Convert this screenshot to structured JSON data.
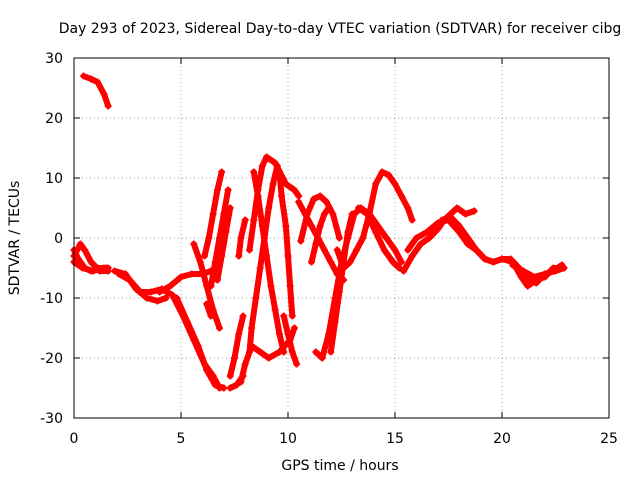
{
  "chart_data": {
    "type": "scatter",
    "title": "Day 293 of 2023, Sidereal Day-to-day VTEC variation (SDTVAR) for receiver cibg",
    "xlabel": "GPS time / hours",
    "ylabel": "SDTVAR / TECUs",
    "xlim": [
      0,
      25
    ],
    "ylim": [
      -30,
      30
    ],
    "xticks": [
      0,
      5,
      10,
      15,
      20,
      25
    ],
    "yticks": [
      -30,
      -20,
      -10,
      0,
      10,
      20,
      30
    ],
    "grid": true,
    "marker": "+",
    "color": "#ff0000",
    "series": [
      {
        "name": "s1",
        "points": [
          [
            0.45,
            27
          ],
          [
            0.8,
            26.5
          ],
          [
            1.1,
            26
          ],
          [
            1.4,
            24
          ],
          [
            1.6,
            22
          ]
        ]
      },
      {
        "name": "s2",
        "points": [
          [
            0.0,
            -2
          ],
          [
            0.2,
            -3.5
          ],
          [
            0.5,
            -5
          ],
          [
            0.8,
            -5.5
          ],
          [
            1.1,
            -5
          ],
          [
            1.5,
            -5
          ]
        ]
      },
      {
        "name": "s3",
        "points": [
          [
            0.0,
            -3
          ],
          [
            0.3,
            -1
          ],
          [
            0.5,
            -2
          ],
          [
            0.8,
            -4
          ],
          [
            1.2,
            -5.5
          ],
          [
            1.6,
            -5.5
          ]
        ]
      },
      {
        "name": "s4",
        "points": [
          [
            0.0,
            -4
          ],
          [
            0.4,
            -5
          ],
          [
            0.9,
            -5.5
          ],
          [
            1.4,
            -5
          ],
          [
            1.6,
            -5
          ]
        ]
      },
      {
        "name": "s5",
        "points": [
          [
            1.9,
            -5.5
          ],
          [
            2.4,
            -6
          ],
          [
            2.9,
            -8.5
          ],
          [
            3.4,
            -10
          ],
          [
            3.9,
            -10.5
          ],
          [
            4.3,
            -10
          ]
        ]
      },
      {
        "name": "s6",
        "points": [
          [
            2.1,
            -6
          ],
          [
            2.6,
            -7
          ],
          [
            3.1,
            -9
          ],
          [
            3.6,
            -9
          ],
          [
            4.1,
            -8.5
          ],
          [
            4.6,
            -9.5
          ],
          [
            5.1,
            -13
          ],
          [
            5.6,
            -17
          ],
          [
            6.1,
            -21
          ],
          [
            6.5,
            -23
          ],
          [
            6.8,
            -25
          ]
        ]
      },
      {
        "name": "s7",
        "points": [
          [
            4.0,
            -9
          ],
          [
            4.5,
            -8
          ],
          [
            5.0,
            -6.5
          ],
          [
            5.5,
            -6
          ],
          [
            6.0,
            -6
          ],
          [
            6.4,
            -5.5
          ]
        ]
      },
      {
        "name": "s8",
        "points": [
          [
            4.8,
            -10
          ],
          [
            5.3,
            -14
          ],
          [
            5.8,
            -18
          ],
          [
            6.2,
            -22
          ],
          [
            6.6,
            -24.5
          ],
          [
            7.0,
            -25
          ]
        ]
      },
      {
        "name": "s9",
        "points": [
          [
            5.6,
            -1
          ],
          [
            5.9,
            -4
          ],
          [
            6.2,
            -8
          ],
          [
            6.5,
            -12
          ],
          [
            6.8,
            -15
          ]
        ]
      },
      {
        "name": "s10",
        "points": [
          [
            6.1,
            -3
          ],
          [
            6.3,
            0
          ],
          [
            6.5,
            4
          ],
          [
            6.7,
            8
          ],
          [
            6.9,
            11
          ]
        ]
      },
      {
        "name": "s11",
        "points": [
          [
            6.4,
            -8
          ],
          [
            6.6,
            -4
          ],
          [
            6.8,
            0
          ],
          [
            7.0,
            4
          ],
          [
            7.2,
            8
          ]
        ]
      },
      {
        "name": "s12",
        "points": [
          [
            6.7,
            -7
          ],
          [
            6.9,
            -3
          ],
          [
            7.1,
            1
          ],
          [
            7.3,
            5
          ]
        ]
      },
      {
        "name": "s13",
        "points": [
          [
            6.2,
            -11
          ],
          [
            6.4,
            -13
          ]
        ]
      },
      {
        "name": "s14",
        "points": [
          [
            7.3,
            -25
          ],
          [
            7.6,
            -24.5
          ],
          [
            7.9,
            -23
          ]
        ]
      },
      {
        "name": "s15",
        "points": [
          [
            7.3,
            -23
          ],
          [
            7.5,
            -20
          ],
          [
            7.7,
            -16
          ],
          [
            7.9,
            -13
          ]
        ]
      },
      {
        "name": "s16",
        "points": [
          [
            7.8,
            -24
          ],
          [
            8.0,
            -21
          ],
          [
            8.3,
            -18
          ],
          [
            8.7,
            -19
          ],
          [
            9.1,
            -20
          ],
          [
            9.6,
            -19
          ],
          [
            10.1,
            -17
          ],
          [
            10.3,
            -15
          ]
        ]
      },
      {
        "name": "s17",
        "points": [
          [
            7.7,
            -3
          ],
          [
            7.8,
            0
          ],
          [
            8.0,
            3
          ]
        ]
      },
      {
        "name": "s18",
        "points": [
          [
            8.2,
            -19
          ],
          [
            8.3,
            -15
          ],
          [
            8.5,
            -10
          ],
          [
            8.7,
            -5
          ],
          [
            8.9,
            0
          ],
          [
            9.1,
            5
          ],
          [
            9.3,
            9
          ],
          [
            9.5,
            12
          ]
        ]
      },
      {
        "name": "s19",
        "points": [
          [
            8.2,
            -2
          ],
          [
            8.4,
            3
          ],
          [
            8.6,
            8
          ],
          [
            8.8,
            12
          ],
          [
            9.0,
            13.5
          ],
          [
            9.4,
            12.5
          ],
          [
            9.9,
            9
          ],
          [
            10.3,
            8
          ],
          [
            10.5,
            7
          ]
        ]
      },
      {
        "name": "s20",
        "points": [
          [
            8.4,
            11
          ],
          [
            8.6,
            7
          ],
          [
            8.8,
            2
          ],
          [
            9.0,
            -3
          ],
          [
            9.2,
            -8
          ],
          [
            9.4,
            -12
          ],
          [
            9.6,
            -16
          ],
          [
            9.8,
            -19
          ]
        ]
      },
      {
        "name": "s21",
        "points": [
          [
            9.6,
            11
          ],
          [
            9.7,
            7
          ],
          [
            9.9,
            2
          ],
          [
            10.0,
            -3
          ],
          [
            10.1,
            -8
          ],
          [
            10.2,
            -13
          ]
        ]
      },
      {
        "name": "s22",
        "points": [
          [
            9.8,
            -13
          ],
          [
            10.0,
            -16
          ],
          [
            10.2,
            -19
          ],
          [
            10.4,
            -21
          ]
        ]
      },
      {
        "name": "s23",
        "points": [
          [
            10.5,
            6
          ],
          [
            10.8,
            4
          ],
          [
            11.1,
            2
          ],
          [
            11.4,
            0
          ],
          [
            11.7,
            -2
          ],
          [
            12.0,
            -4
          ],
          [
            12.3,
            -6
          ],
          [
            12.6,
            -7
          ]
        ]
      },
      {
        "name": "s24",
        "points": [
          [
            10.6,
            -0.5
          ],
          [
            10.9,
            4
          ],
          [
            11.2,
            6.5
          ],
          [
            11.5,
            7
          ],
          [
            11.8,
            6
          ],
          [
            12.1,
            4
          ],
          [
            12.4,
            0
          ]
        ]
      },
      {
        "name": "s25",
        "points": [
          [
            11.1,
            -4
          ],
          [
            11.3,
            -1
          ],
          [
            11.5,
            2
          ],
          [
            11.7,
            4
          ],
          [
            11.9,
            5
          ]
        ]
      },
      {
        "name": "s26",
        "points": [
          [
            11.3,
            -19
          ],
          [
            11.6,
            -20
          ],
          [
            11.9,
            -16
          ],
          [
            12.2,
            -10
          ],
          [
            12.5,
            -4
          ],
          [
            12.8,
            0
          ],
          [
            13.1,
            4
          ],
          [
            13.4,
            5
          ],
          [
            13.8,
            4
          ],
          [
            14.2,
            2
          ],
          [
            14.6,
            0
          ],
          [
            15.0,
            -2
          ],
          [
            15.3,
            -4
          ]
        ]
      },
      {
        "name": "s27",
        "points": [
          [
            12.0,
            -19
          ],
          [
            12.2,
            -14
          ],
          [
            12.4,
            -9
          ],
          [
            12.6,
            -4
          ],
          [
            12.8,
            1
          ],
          [
            13.0,
            4
          ]
        ]
      },
      {
        "name": "s28",
        "points": [
          [
            12.3,
            -2
          ],
          [
            12.6,
            -5
          ],
          [
            12.9,
            -4
          ],
          [
            13.2,
            -2
          ],
          [
            13.5,
            0
          ],
          [
            13.8,
            4
          ],
          [
            14.1,
            9
          ],
          [
            14.4,
            11
          ],
          [
            14.7,
            10.5
          ],
          [
            15.0,
            9
          ],
          [
            15.3,
            7
          ],
          [
            15.6,
            5
          ],
          [
            15.8,
            3
          ]
        ]
      },
      {
        "name": "s29",
        "points": [
          [
            13.3,
            5
          ],
          [
            13.7,
            4
          ],
          [
            14.1,
            1
          ],
          [
            14.5,
            -2
          ],
          [
            14.9,
            -4
          ],
          [
            15.2,
            -5
          ]
        ]
      },
      {
        "name": "s30",
        "points": [
          [
            15.4,
            -5.5
          ],
          [
            15.8,
            -3
          ],
          [
            16.2,
            -1
          ],
          [
            16.6,
            0
          ],
          [
            17.0,
            1.5
          ],
          [
            17.3,
            3
          ],
          [
            17.6,
            4
          ],
          [
            17.9,
            5
          ],
          [
            18.3,
            4
          ],
          [
            18.7,
            4.5
          ]
        ]
      },
      {
        "name": "s31",
        "points": [
          [
            15.6,
            -2
          ],
          [
            16.0,
            0
          ],
          [
            16.5,
            1
          ],
          [
            17.0,
            2.5
          ],
          [
            17.5,
            3
          ],
          [
            18.0,
            1
          ],
          [
            18.4,
            -1
          ],
          [
            18.8,
            -2
          ],
          [
            19.2,
            -3.5
          ],
          [
            19.6,
            -4
          ],
          [
            20.0,
            -3.5
          ],
          [
            20.4,
            -3.5
          ],
          [
            20.8,
            -5
          ],
          [
            21.2,
            -7
          ],
          [
            21.6,
            -7.5
          ],
          [
            22.0,
            -6
          ],
          [
            22.4,
            -5.5
          ],
          [
            22.8,
            -4.5
          ]
        ]
      },
      {
        "name": "s32",
        "points": [
          [
            16.8,
            1
          ],
          [
            17.2,
            3
          ],
          [
            17.6,
            3.5
          ],
          [
            18.0,
            2
          ],
          [
            18.4,
            0
          ],
          [
            18.8,
            -2
          ],
          [
            19.2,
            -3.5
          ],
          [
            19.6,
            -4
          ],
          [
            20.0,
            -3.5
          ],
          [
            20.5,
            -4
          ],
          [
            20.9,
            -6.5
          ],
          [
            21.2,
            -8
          ],
          [
            21.6,
            -7
          ],
          [
            22.0,
            -6.5
          ],
          [
            22.4,
            -5
          ],
          [
            22.8,
            -5
          ]
        ]
      },
      {
        "name": "s33",
        "points": [
          [
            20.5,
            -4.5
          ],
          [
            21.0,
            -5.5
          ],
          [
            21.5,
            -6.5
          ],
          [
            22.0,
            -6
          ],
          [
            22.5,
            -5.5
          ],
          [
            22.9,
            -5
          ]
        ]
      }
    ]
  }
}
